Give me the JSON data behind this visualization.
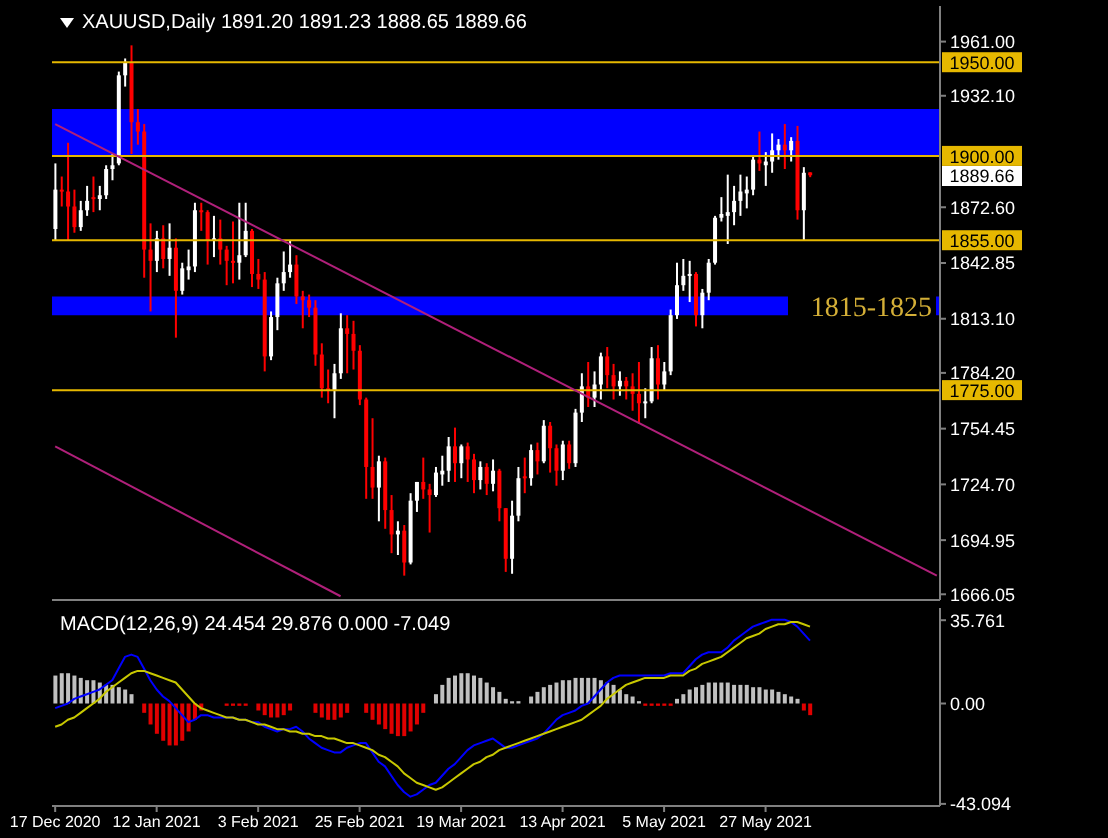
{
  "chart_data": [
    {
      "type": "candlestick",
      "title": "XAUUSD,Daily 1891.20 1891.23 1888.65 1889.66",
      "tick_labels": "y",
      "colors": [
        "#ffffff",
        "#ff0000",
        "#ff0000",
        "#ff0000",
        "#ffffff",
        "#ffffff",
        "#ff0000",
        "#ffffff",
        "#ffffff",
        "#ffffff",
        "#ffffff",
        "#ffffff",
        "#ff0000",
        "#ff0000",
        "#ff0000",
        "#ff0000",
        "#ffffff",
        "#ff0000",
        "#ffffff",
        "#ff0000",
        "#ffffff",
        "#ffffff",
        "#ffffff",
        "#ff0000",
        "#ff0000",
        "#ffffff",
        "#ff0000",
        "#ff0000",
        "#ff0000",
        "#ffffff",
        "#ffffff",
        "#ff0000",
        "#ff0000",
        "#ff0000",
        "#ffffff",
        "#ffffff",
        "#ffffff",
        "#ffffff",
        "#ff0000",
        "#ff0000",
        "#ff0000",
        "#ff0000",
        "#ff0000",
        "#ff0000",
        "#ffffff",
        "#ffffff",
        "#ff0000",
        "#ff0000",
        "#ff0000",
        "#ff0000",
        "#ff0000",
        "#ffffff",
        "#ff0000",
        "#ff0000",
        "#ffffff",
        "#ff0000",
        "#ffffff",
        "#ffffff",
        "#ff0000",
        "#ff0000",
        "#ffffff",
        "#ffffff",
        "#ffffff",
        "#ff0000",
        "#ffffff",
        "#ff0000",
        "#ff0000",
        "#ffffff",
        "#ff0000",
        "#ffffff",
        "#ff0000",
        "#ff0000",
        "#ffffff",
        "#ffffff",
        "#ff0000",
        "#ffffff",
        "#ff0000",
        "#ffffff",
        "#ff0000",
        "#ff0000",
        "#ffffff",
        "#ff0000",
        "#ffffff",
        "#ffffff",
        "#ff0000",
        "#ffffff",
        "#ffffff",
        "#ff0000",
        "#ff0000",
        "#ffffff",
        "#ff0000",
        "#ff0000",
        "#ff0000",
        "#ffffff",
        "#ffffff",
        "#ff0000",
        "#ffffff",
        "#ffffff",
        "#ffffff",
        "#ffffff",
        "#ffffff",
        "#ff0000",
        "#ffffff",
        "#ffffff",
        "#ffffff",
        "#ffffff",
        "#ffffff",
        "#ffffff",
        "#ffffff",
        "#ffffff",
        "#ffffff",
        "#ff0000",
        "#ffffff",
        "#ffffff",
        "#ffffff",
        "#ff0000",
        "#ffffff",
        "#ff0000",
        "#ffffff",
        "#ff0000",
        null,
        null,
        null,
        null,
        null,
        null,
        null,
        null,
        null,
        null,
        null,
        null,
        null,
        null,
        null,
        null,
        null,
        null,
        null,
        null
      ],
      "categories": [
        null,
        null,
        null,
        null,
        null,
        null,
        null,
        null,
        null,
        null,
        null,
        null,
        null,
        null,
        null,
        null,
        null,
        null,
        null,
        null,
        null,
        null,
        null,
        null,
        null,
        null,
        null,
        null,
        null,
        null,
        null,
        null,
        null,
        null,
        null,
        null,
        null,
        null,
        null,
        null,
        null,
        null,
        null,
        null,
        null,
        null,
        null,
        null,
        null,
        null,
        null,
        null,
        null,
        null,
        null,
        null,
        null,
        null,
        null,
        null,
        null,
        null,
        null,
        null,
        null,
        null,
        null,
        null,
        null,
        null,
        null,
        null,
        null,
        null,
        null,
        null,
        null,
        null,
        null,
        null,
        null,
        null,
        null,
        null,
        null,
        null,
        null,
        null,
        null,
        null,
        null,
        null,
        null,
        null,
        null,
        null,
        null,
        null,
        null,
        null,
        null,
        null,
        null,
        null,
        null,
        null,
        null,
        null,
        null,
        null,
        null,
        null,
        null,
        null,
        null,
        null,
        null,
        null,
        null,
        null,
        null,
        null,
        null,
        null,
        null,
        null,
        null,
        null,
        null,
        null,
        null,
        null,
        null,
        null,
        null,
        null,
        null,
        null,
        null,
        null
      ],
      "ohlc": [
        [
          1861,
          1896,
          1855,
          1882
        ],
        [
          1882,
          1889,
          1873,
          1881
        ],
        [
          1881,
          1907,
          1855,
          1873
        ],
        [
          1873,
          1882,
          1859,
          1862
        ],
        [
          1862,
          1876,
          1860,
          1871
        ],
        [
          1871,
          1884,
          1868,
          1876
        ],
        [
          1878,
          1889,
          1870,
          1877
        ],
        [
          1877,
          1884,
          1871,
          1879
        ],
        [
          1879,
          1895,
          1877,
          1893
        ],
        [
          1893,
          1901,
          1887,
          1895
        ],
        [
          1896,
          1945,
          1895,
          1943
        ],
        [
          1943,
          1952,
          1937,
          1950
        ],
        [
          1950,
          1959,
          1901,
          1918
        ],
        [
          1918,
          1925,
          1906,
          1913
        ],
        [
          1913,
          1917,
          1835,
          1850
        ],
        [
          1850,
          1864,
          1817,
          1844
        ],
        [
          1844,
          1860,
          1838,
          1856
        ],
        [
          1856,
          1863,
          1840,
          1845
        ],
        [
          1845,
          1864,
          1836,
          1851
        ],
        [
          1851,
          1856,
          1803,
          1828
        ],
        [
          1828,
          1843,
          1826,
          1840
        ],
        [
          1839,
          1850,
          1834,
          1841
        ],
        [
          1841,
          1875,
          1838,
          1871
        ],
        [
          1871,
          1875,
          1860,
          1870
        ],
        [
          1870,
          1871,
          1842,
          1855
        ],
        [
          1855,
          1868,
          1846,
          1856
        ],
        [
          1856,
          1866,
          1842,
          1850
        ],
        [
          1850,
          1852,
          1831,
          1844
        ],
        [
          1844,
          1865,
          1832,
          1843
        ],
        [
          1843,
          1875,
          1834,
          1847
        ],
        [
          1847,
          1875,
          1846,
          1860
        ],
        [
          1860,
          1861,
          1830,
          1837
        ],
        [
          1837,
          1845,
          1829,
          1834
        ],
        [
          1834,
          1838,
          1785,
          1793
        ],
        [
          1793,
          1817,
          1791,
          1814
        ],
        [
          1814,
          1835,
          1807,
          1832
        ],
        [
          1832,
          1849,
          1828,
          1838
        ],
        [
          1838,
          1855,
          1835,
          1842
        ],
        [
          1842,
          1847,
          1821,
          1825
        ],
        [
          1825,
          1828,
          1808,
          1823
        ],
        [
          1823,
          1826,
          1814,
          1819
        ],
        [
          1819,
          1823,
          1788,
          1794
        ],
        [
          1794,
          1800,
          1771,
          1776
        ],
        [
          1776,
          1786,
          1768,
          1775
        ],
        [
          1775,
          1789,
          1760,
          1784
        ],
        [
          1784,
          1816,
          1781,
          1808
        ],
        [
          1808,
          1815,
          1784,
          1805
        ],
        [
          1805,
          1812,
          1786,
          1796
        ],
        [
          1796,
          1799,
          1767,
          1770
        ],
        [
          1770,
          1771,
          1717,
          1734
        ],
        [
          1734,
          1760,
          1717,
          1723
        ],
        [
          1723,
          1740,
          1705,
          1737
        ],
        [
          1737,
          1739,
          1701,
          1711
        ],
        [
          1711,
          1719,
          1688,
          1698
        ],
        [
          1698,
          1705,
          1687,
          1700
        ],
        [
          1700,
          1703,
          1676,
          1683
        ],
        [
          1683,
          1720,
          1682,
          1716
        ],
        [
          1716,
          1726,
          1710,
          1726
        ],
        [
          1726,
          1739,
          1717,
          1722
        ],
        [
          1722,
          1725,
          1699,
          1719
        ],
        [
          1719,
          1734,
          1718,
          1731
        ],
        [
          1730,
          1740,
          1724,
          1732
        ],
        [
          1732,
          1750,
          1726,
          1745
        ],
        [
          1745,
          1755,
          1726,
          1736
        ],
        [
          1736,
          1746,
          1728,
          1745
        ],
        [
          1745,
          1747,
          1726,
          1738
        ],
        [
          1738,
          1741,
          1720,
          1727
        ],
        [
          1727,
          1737,
          1722,
          1734
        ],
        [
          1734,
          1736,
          1719,
          1725
        ],
        [
          1725,
          1738,
          1721,
          1732
        ],
        [
          1732,
          1733,
          1705,
          1712
        ],
        [
          1712,
          1712,
          1678,
          1685
        ],
        [
          1685,
          1716,
          1677,
          1708
        ],
        [
          1708,
          1734,
          1705,
          1728
        ],
        [
          1729,
          1739,
          1720,
          1728
        ],
        [
          1728,
          1746,
          1724,
          1743
        ],
        [
          1743,
          1747,
          1730,
          1737
        ],
        [
          1737,
          1759,
          1736,
          1756
        ],
        [
          1756,
          1758,
          1731,
          1744
        ],
        [
          1744,
          1746,
          1724,
          1732
        ],
        [
          1732,
          1748,
          1727,
          1746
        ],
        [
          1746,
          1748,
          1733,
          1736
        ],
        [
          1736,
          1765,
          1734,
          1763
        ],
        [
          1763,
          1784,
          1758,
          1777
        ],
        [
          1777,
          1790,
          1766,
          1771
        ],
        [
          1771,
          1785,
          1766,
          1778
        ],
        [
          1778,
          1795,
          1770,
          1793
        ],
        [
          1793,
          1798,
          1776,
          1783
        ],
        [
          1783,
          1789,
          1770,
          1777
        ],
        [
          1777,
          1785,
          1772,
          1780
        ],
        [
          1780,
          1782,
          1770,
          1777
        ],
        [
          1777,
          1784,
          1764,
          1773
        ],
        [
          1773,
          1790,
          1757,
          1768
        ],
        [
          1768,
          1776,
          1760,
          1769
        ],
        [
          1769,
          1798,
          1768,
          1792
        ],
        [
          1792,
          1799,
          1770,
          1778
        ],
        [
          1778,
          1790,
          1775,
          1785
        ],
        [
          1785,
          1818,
          1783,
          1815
        ],
        [
          1815,
          1843,
          1813,
          1831
        ],
        [
          1831,
          1845,
          1828,
          1836
        ],
        [
          1836,
          1844,
          1822,
          1837
        ],
        [
          1837,
          1838,
          1809,
          1815
        ],
        [
          1815,
          1829,
          1808,
          1827
        ],
        [
          1827,
          1845,
          1823,
          1843
        ],
        [
          1843,
          1868,
          1842,
          1867
        ],
        [
          1867,
          1878,
          1865,
          1869
        ],
        [
          1868,
          1890,
          1853,
          1870
        ],
        [
          1870,
          1884,
          1863,
          1876
        ],
        [
          1876,
          1890,
          1868,
          1881
        ],
        [
          1880,
          1889,
          1872,
          1882
        ],
        [
          1882,
          1900,
          1879,
          1898
        ],
        [
          1898,
          1913,
          1892,
          1896
        ],
        [
          1895,
          1902,
          1884,
          1897
        ],
        [
          1897,
          1912,
          1891,
          1903
        ],
        [
          1903,
          1909,
          1898,
          1906
        ],
        [
          1906,
          1917,
          1893,
          1903
        ],
        [
          1903,
          1910,
          1897,
          1908
        ],
        [
          1908,
          1916,
          1866,
          1871
        ],
        [
          1871,
          1894,
          1855,
          1891
        ],
        [
          1891.2,
          1891.23,
          1888.65,
          1889.66
        ],
        null,
        null,
        null,
        null,
        null,
        null,
        null,
        null,
        null,
        null,
        null,
        null,
        null,
        null,
        null,
        null,
        null,
        null,
        null,
        null
      ],
      "series": [
        {
          "type": "line",
          "color": "#b0207a",
          "values": [
            1917,
            null,
            null,
            null,
            null,
            null,
            null,
            null,
            null,
            null,
            null,
            null,
            null,
            null,
            null,
            null,
            null,
            null,
            null,
            null,
            null,
            null,
            null,
            null,
            null,
            null,
            null,
            null,
            null,
            null,
            null,
            null,
            null,
            null,
            null,
            null,
            null,
            null,
            null,
            null,
            null,
            null,
            null,
            null,
            null,
            null,
            null,
            null,
            null,
            null,
            null,
            null,
            null,
            null,
            null,
            null,
            null,
            null,
            null,
            null,
            null,
            null,
            null,
            null,
            null,
            null,
            null,
            null,
            null,
            null,
            null,
            null,
            null,
            null,
            null,
            null,
            null,
            null,
            null,
            null,
            null,
            null,
            null,
            null,
            null,
            null,
            null,
            null,
            null,
            null,
            null,
            null,
            null,
            null,
            null,
            null,
            null,
            null,
            null,
            null,
            null,
            null,
            null,
            null,
            null,
            null,
            null,
            null,
            null,
            null,
            null,
            null,
            null,
            null,
            null,
            null,
            null,
            null,
            null,
            null,
            null,
            null,
            null,
            null,
            null,
            null,
            null,
            null,
            null,
            null,
            null,
            null,
            null,
            null,
            null,
            null,
            null,
            null,
            null,
            1676
          ]
        },
        {
          "type": "line",
          "color": "#b0207a",
          "values": [
            1745,
            null,
            null,
            null,
            null,
            null,
            null,
            null,
            null,
            null,
            null,
            null,
            null,
            null,
            null,
            null,
            null,
            null,
            null,
            null,
            null,
            null,
            null,
            null,
            null,
            null,
            null,
            null,
            null,
            null,
            null,
            null,
            null,
            null,
            null,
            null,
            null,
            null,
            null,
            null,
            null,
            null,
            null,
            null,
            null,
            1665,
            null,
            null,
            null,
            null,
            null,
            null,
            null,
            null,
            null,
            null,
            null,
            null,
            null,
            null,
            null,
            null,
            null,
            null,
            null,
            null,
            null,
            null,
            null,
            null,
            null,
            null,
            null,
            null,
            null,
            null,
            null,
            null,
            null,
            null,
            null,
            null,
            null,
            null,
            null,
            null,
            null,
            null,
            null,
            null,
            null,
            null,
            null,
            null,
            null,
            null,
            null,
            null,
            null,
            null,
            null,
            null,
            null,
            null,
            null,
            null,
            null,
            null,
            null,
            null,
            null,
            null,
            null,
            null,
            null,
            null,
            null,
            null,
            null,
            null,
            null,
            null,
            null,
            null,
            null,
            null,
            null,
            null,
            null,
            null,
            null,
            null,
            null,
            null,
            null,
            null,
            null,
            null,
            null,
            null
          ]
        }
      ],
      "ylim": [
        1663,
        1980
      ],
      "yticks": [
        {
          "value": 1961,
          "label": "1961.00"
        },
        {
          "value": 1932.1,
          "label": "1932.10"
        },
        {
          "value": 1872.6,
          "label": "1872.60"
        },
        {
          "value": 1842.85,
          "label": "1842.85"
        },
        {
          "value": 1813.1,
          "label": "1813.10"
        },
        {
          "value": 1784.2,
          "label": "1784.20"
        },
        {
          "value": 1754.45,
          "label": "1754.45"
        },
        {
          "value": 1724.7,
          "label": "1724.70"
        },
        {
          "value": 1694.95,
          "label": "1694.95"
        },
        {
          "value": 1666.05,
          "label": "1666.05"
        }
      ],
      "bands": [
        {
          "axis": "y",
          "from": 1900,
          "to": 1925,
          "color": "#0000ff"
        },
        {
          "axis": "y",
          "from": 1815,
          "to": 1825,
          "label": "1815-1825",
          "color": "#0000ff"
        }
      ],
      "ref_lines": [
        {
          "axis": "y",
          "value": 1950,
          "label": "1950.00",
          "color": "#e6b800"
        },
        {
          "axis": "y",
          "value": 1900,
          "label": "1900.00",
          "color": "#e6b800"
        },
        {
          "axis": "y",
          "value": 1855,
          "label": "1855.00",
          "color": "#e6b800"
        },
        {
          "axis": "y",
          "value": 1775,
          "label": "1775.00",
          "color": "#e6b800"
        }
      ],
      "annotations": [
        "1889.66"
      ]
    },
    {
      "type": "bar",
      "title": "MACD(12,26,9) 24.454 29.876 0.000 -7.049",
      "stacked": true,
      "categories": [
        "17 Dec 2020",
        null,
        null,
        null,
        null,
        null,
        null,
        null,
        null,
        null,
        null,
        null,
        null,
        null,
        null,
        null,
        "12 Jan 2021",
        null,
        null,
        null,
        null,
        null,
        null,
        null,
        null,
        null,
        null,
        null,
        null,
        null,
        null,
        null,
        "3 Feb 2021",
        null,
        null,
        null,
        null,
        null,
        null,
        null,
        null,
        null,
        null,
        null,
        null,
        null,
        null,
        null,
        "25 Feb 2021",
        null,
        null,
        null,
        null,
        null,
        null,
        null,
        null,
        null,
        null,
        null,
        null,
        null,
        null,
        null,
        "19 Mar 2021",
        null,
        null,
        null,
        null,
        null,
        null,
        null,
        null,
        null,
        null,
        null,
        null,
        null,
        null,
        null,
        "13 Apr 2021",
        null,
        null,
        null,
        null,
        null,
        null,
        null,
        null,
        null,
        null,
        null,
        null,
        null,
        null,
        null,
        "5 May 2021",
        null,
        null,
        null,
        null,
        null,
        null,
        null,
        null,
        null,
        null,
        null,
        null,
        null,
        null,
        null,
        "27 May 2021",
        null,
        null,
        null,
        null,
        null,
        null,
        null,
        null,
        null,
        null,
        null,
        null,
        null,
        null,
        null,
        null,
        null,
        null,
        null,
        null,
        null,
        null,
        null,
        null,
        null,
        null,
        null
      ],
      "series": [
        {
          "color": "#c0c0c0",
          "values": [
            12,
            13,
            13,
            12,
            11,
            10,
            10,
            9,
            8,
            8,
            7,
            6,
            4,
            null,
            null,
            null,
            null,
            null,
            null,
            null,
            null,
            null,
            null,
            null,
            null,
            null,
            null,
            null,
            null,
            null,
            null,
            null,
            null,
            null,
            null,
            null,
            null,
            null,
            null,
            null,
            null,
            null,
            null,
            null,
            null,
            null,
            null,
            null,
            null,
            null,
            null,
            null,
            null,
            null,
            null,
            null,
            null,
            null,
            null,
            null,
            4,
            8,
            11,
            12,
            13,
            13,
            12,
            11,
            9,
            7,
            5,
            2,
            1,
            1,
            null,
            3,
            5,
            7,
            8,
            9,
            10,
            10,
            11,
            11,
            11,
            11,
            10,
            9,
            8,
            6,
            4,
            3,
            1,
            null,
            null,
            null,
            null,
            null,
            2,
            4,
            6,
            7,
            8,
            9,
            9,
            9,
            9,
            8,
            8,
            8,
            7,
            7,
            6,
            6,
            5,
            4,
            3,
            2,
            null,
            null,
            null,
            null,
            null,
            null,
            null,
            null,
            null,
            null,
            null,
            null,
            null,
            null,
            null,
            null,
            null,
            null,
            null,
            null,
            null,
            null
          ]
        },
        {
          "color": "#e00000",
          "values": [
            null,
            null,
            null,
            null,
            null,
            null,
            null,
            null,
            null,
            null,
            null,
            null,
            null,
            null,
            -4,
            -9,
            -13,
            -16,
            -18,
            -18,
            -16,
            -12,
            -7,
            -3,
            null,
            null,
            null,
            -1,
            -1,
            -1,
            -1,
            null,
            -3,
            -5,
            -6,
            -6,
            -5,
            -3,
            null,
            null,
            null,
            -4,
            -6,
            -7,
            -7,
            -6,
            -4,
            null,
            null,
            -4,
            -7,
            -9,
            -11,
            -13,
            -14,
            -14,
            -12,
            -9,
            -4,
            null,
            null,
            null,
            null,
            null,
            null,
            null,
            null,
            null,
            null,
            null,
            null,
            null,
            null,
            null,
            null,
            null,
            null,
            null,
            null,
            null,
            null,
            null,
            null,
            null,
            null,
            null,
            null,
            null,
            null,
            null,
            null,
            null,
            null,
            -1,
            -1,
            -1,
            -1,
            -1,
            null,
            null,
            null,
            null,
            null,
            null,
            null,
            null,
            null,
            null,
            null,
            null,
            null,
            null,
            null,
            null,
            null,
            null,
            null,
            null,
            -3,
            -5,
            null,
            null,
            null,
            null,
            null,
            null,
            null,
            null,
            null,
            null,
            null,
            null,
            null,
            null,
            null,
            null,
            null,
            null,
            null,
            null
          ]
        },
        {
          "type": "line",
          "color": "#0000ff",
          "values": [
            -2,
            -1,
            0,
            2,
            3,
            4,
            5,
            6,
            8,
            10,
            15,
            20,
            21,
            20,
            15,
            10,
            6,
            3,
            1,
            -2,
            -5,
            -8,
            -7,
            -5,
            -5,
            -6,
            -6,
            -6,
            -6,
            -7,
            -7,
            -8,
            -8,
            -10,
            -11,
            -12,
            -11,
            -11,
            -10,
            -12,
            -15,
            -17,
            -19,
            -20,
            -21,
            -21,
            -19,
            -18,
            -17,
            -17,
            -21,
            -25,
            -27,
            -31,
            -35,
            -38,
            -40,
            -39,
            -37,
            -35,
            -34,
            -31,
            -28,
            -26,
            -23,
            -20,
            -18,
            -17,
            -16,
            -15,
            -17,
            -19,
            -19,
            -18,
            -17,
            -16,
            -15,
            -13,
            -10,
            -7,
            -5,
            -4,
            -3,
            -1,
            0,
            3,
            6,
            9,
            11,
            12,
            12,
            12,
            12,
            12,
            12,
            12,
            12,
            13,
            13,
            13,
            16,
            19,
            21,
            22,
            22,
            22,
            24,
            27,
            29,
            31,
            33,
            34,
            35,
            36,
            36,
            36,
            35,
            33,
            30,
            27,
            null,
            null,
            null,
            null,
            null,
            null,
            null,
            null,
            null,
            null,
            null,
            null,
            null,
            null,
            null,
            null,
            null,
            null,
            null,
            null
          ]
        },
        {
          "type": "line",
          "color": "#c8c800",
          "values": [
            -10,
            -9,
            -7,
            -6,
            -4,
            -2,
            0,
            2,
            5,
            7,
            9,
            11,
            13,
            14,
            14,
            13,
            12,
            11,
            10,
            9,
            6,
            3,
            0,
            -2,
            -3,
            -4,
            -5,
            -6,
            -6,
            -7,
            -7,
            -8,
            -9,
            -9,
            -10,
            -11,
            -11,
            -12,
            -12,
            -13,
            -13,
            -14,
            -14,
            -15,
            -15,
            -16,
            -17,
            -17,
            -18,
            -19,
            -20,
            -22,
            -23,
            -25,
            -27,
            -30,
            -32,
            -34,
            -35,
            -36,
            -37,
            -36,
            -34,
            -32,
            -30,
            -28,
            -26,
            -25,
            -23,
            -22,
            -20,
            -19,
            -18,
            -17,
            -16,
            -15,
            -14,
            -13,
            -12,
            -11,
            -10,
            -9,
            -8,
            -7,
            -5,
            -3,
            -1,
            2,
            4,
            6,
            8,
            9,
            10,
            11,
            11,
            11,
            11,
            12,
            12,
            12,
            14,
            15,
            17,
            18,
            19,
            20,
            22,
            24,
            26,
            28,
            29,
            30,
            32,
            33,
            34,
            34,
            35,
            35,
            34,
            33,
            null,
            null,
            null,
            null,
            null,
            null,
            null,
            null,
            null,
            null,
            null,
            null,
            null,
            null,
            null,
            null,
            null,
            null,
            null,
            null
          ]
        }
      ],
      "ylim": [
        -44,
        41
      ],
      "yticks": [
        {
          "value": 35.761,
          "label": "35.761"
        },
        {
          "value": 0,
          "label": "0.00"
        },
        {
          "value": -43.094,
          "label": "-43.094"
        }
      ]
    }
  ]
}
